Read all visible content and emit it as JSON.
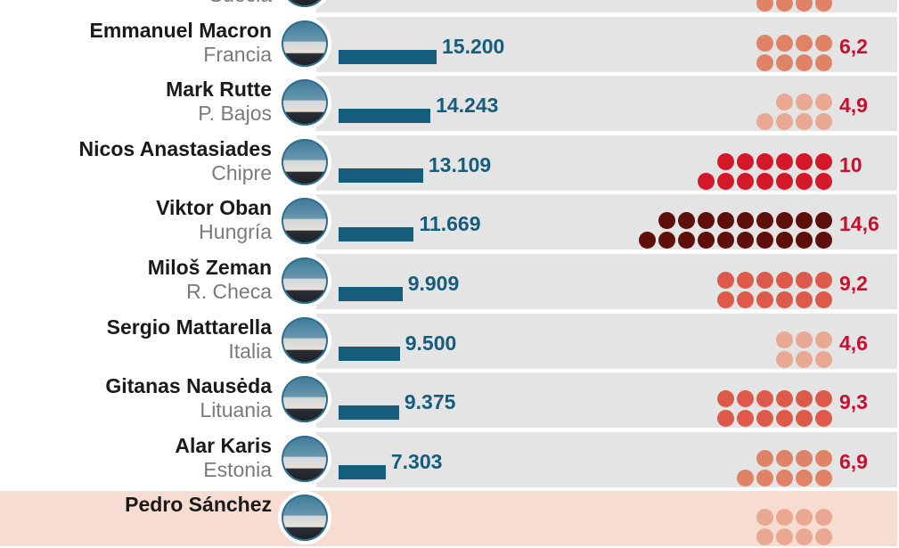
{
  "chart_data": {
    "type": "bar",
    "rows": [
      {
        "name": "",
        "country": "Suecia",
        "value": null,
        "value_label": "",
        "pct": null,
        "pct_label": "",
        "level": "light"
      },
      {
        "name": "Emmanuel Macron",
        "country": "Francia",
        "value": 15200,
        "value_label": "15.200",
        "pct": 6.2,
        "pct_label": "6,2",
        "level": "light"
      },
      {
        "name": "Mark Rutte",
        "country": "P. Bajos",
        "value": 14243,
        "value_label": "14.243",
        "pct": 4.9,
        "pct_label": "4,9",
        "level": "lighter"
      },
      {
        "name": "Nicos Anastasiades",
        "country": "Chipre",
        "value": 13109,
        "value_label": "13.109",
        "pct": 10,
        "pct_label": "10",
        "level": "red"
      },
      {
        "name": "Viktor Oban",
        "country": "Hungría",
        "value": 11669,
        "value_label": "11.669",
        "pct": 14.6,
        "pct_label": "14,6",
        "level": "dark"
      },
      {
        "name": "Miloš Zeman",
        "country": "R. Checa",
        "value": 9909,
        "value_label": "9.909",
        "pct": 9.2,
        "pct_label": "9,2",
        "level": "medium"
      },
      {
        "name": "Sergio Mattarella",
        "country": "Italia",
        "value": 9500,
        "value_label": "9.500",
        "pct": 4.6,
        "pct_label": "4,6",
        "level": "lighter"
      },
      {
        "name": "Gitanas Nausėda",
        "country": "Lituania",
        "value": 9375,
        "value_label": "9.375",
        "pct": 9.3,
        "pct_label": "9,3",
        "level": "medium"
      },
      {
        "name": "Alar Karis",
        "country": "Estonia",
        "value": 7303,
        "value_label": "7.303",
        "pct": 6.9,
        "pct_label": "6,9",
        "level": "light"
      },
      {
        "name": "Pedro Sánchez",
        "country": "",
        "value": null,
        "value_label": "",
        "pct": null,
        "pct_label": "",
        "level": "lighter",
        "highlight": true
      }
    ],
    "colors": {
      "bar": "#165d7d",
      "value_text": "#165d7d",
      "pct_text": "#c8102e",
      "dot_dark": "#5e0f0a",
      "dot_red": "#d3182a",
      "dot_medium": "#dd5a4a",
      "dot_light": "#e08266",
      "dot_lighter": "#e8a891",
      "band": "#e4e4e5",
      "highlight_band": "#f7dcd2"
    }
  }
}
